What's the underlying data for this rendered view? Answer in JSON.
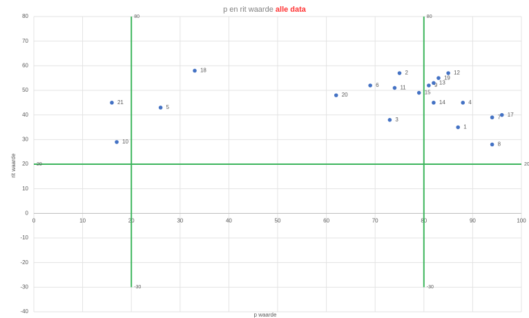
{
  "chart_data": {
    "type": "scatter",
    "title": "p en rit waarde",
    "title_highlight": "alle data",
    "x_label": "p waarde",
    "y_label": "rit waarde",
    "xlim": [
      0,
      100
    ],
    "xticks": [
      0,
      10,
      20,
      30,
      40,
      50,
      60,
      70,
      80,
      90,
      100
    ],
    "ylim": [
      -40,
      80
    ],
    "yticks": [
      -40,
      -30,
      -20,
      -10,
      0,
      10,
      20,
      30,
      40,
      50,
      60,
      70,
      80
    ],
    "grid": true,
    "series": [
      {
        "color": "#4472c4",
        "x": [
          33,
          16,
          26,
          17,
          62,
          69,
          74,
          75,
          73,
          79,
          81,
          82,
          83,
          85,
          82,
          88,
          87,
          94,
          96,
          94
        ],
        "values": [
          58,
          45,
          43,
          29,
          48,
          52,
          51,
          57,
          38,
          49,
          52,
          53,
          55,
          57,
          45,
          45,
          35,
          39,
          40,
          28
        ],
        "point_labels": [
          "18",
          "21",
          "5",
          "10",
          "20",
          "6",
          "11",
          "2",
          "3",
          "15",
          "9",
          "13",
          "19",
          "12",
          "14",
          "4",
          "1",
          "7",
          "17",
          "8"
        ]
      }
    ],
    "reference_lines": [
      {
        "color": "#3cb55c",
        "x": [
          20,
          20
        ],
        "values": [
          -30,
          80
        ]
      },
      {
        "color": "#3cb55c",
        "x": [
          80,
          80
        ],
        "values": [
          -30,
          80
        ]
      },
      {
        "color": "#3cb55c",
        "x": [
          0,
          100
        ],
        "values": [
          20,
          20
        ]
      }
    ]
  }
}
